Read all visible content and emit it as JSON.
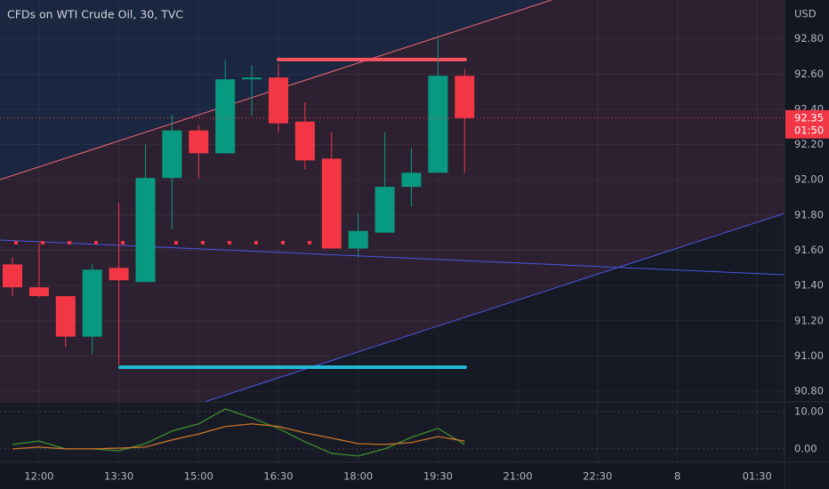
{
  "chart_data": [
    {
      "type": "candlestick",
      "title": "CFDs on WTI Crude Oil, 30, TVC",
      "currency": "USD",
      "categories": [
        null,
        "12:00",
        null,
        null,
        "13:30",
        null,
        null,
        "15:00",
        null,
        null,
        "16:30",
        null,
        null,
        "18:00",
        null,
        null,
        "19:30",
        null,
        null,
        "21:00",
        null,
        null,
        "22:30",
        null,
        null,
        "8",
        null,
        null,
        "01:30"
      ],
      "open": [
        91.52,
        91.39,
        91.34,
        91.11,
        91.5,
        91.42,
        92.01,
        92.28,
        92.15,
        92.57,
        92.58,
        92.33,
        92.12,
        91.61,
        91.7,
        91.96,
        92.04,
        92.59,
        null,
        null,
        null,
        null,
        null,
        null,
        null,
        null,
        null,
        null,
        null
      ],
      "high": [
        91.56,
        91.64,
        91.34,
        91.52,
        91.87,
        92.2,
        92.37,
        92.31,
        92.68,
        92.65,
        92.66,
        92.44,
        92.27,
        91.81,
        92.27,
        92.18,
        92.8,
        92.63,
        null,
        null,
        null,
        null,
        null,
        null,
        null,
        null,
        null,
        null,
        null
      ],
      "low": [
        91.34,
        91.33,
        91.05,
        91.01,
        90.95,
        91.42,
        91.72,
        92.01,
        92.15,
        92.36,
        92.27,
        92.06,
        91.61,
        91.56,
        91.7,
        91.85,
        92.04,
        92.04,
        null,
        null,
        null,
        null,
        null,
        null,
        null,
        null,
        null,
        null,
        null
      ],
      "close": [
        91.39,
        91.34,
        91.11,
        91.49,
        91.43,
        92.01,
        92.28,
        92.15,
        92.57,
        92.58,
        92.32,
        92.11,
        91.61,
        91.71,
        91.96,
        92.04,
        92.59,
        92.35,
        null,
        null,
        null,
        null,
        null,
        null,
        null,
        null,
        null,
        null,
        null
      ],
      "up_color": "#089981",
      "down_color": "#f23645",
      "last_price": 92.35,
      "countdown": "01:50",
      "ylim": [
        90.74,
        93.02
      ],
      "yticks": [
        {
          "value": 92.8,
          "label": "92.80"
        },
        {
          "value": 92.6,
          "label": "92.60"
        },
        {
          "value": 92.4,
          "label": "92.40"
        },
        {
          "value": 92.2,
          "label": "92.20"
        },
        {
          "value": 92.0,
          "label": "92.00"
        },
        {
          "value": 91.8,
          "label": "91.80"
        },
        {
          "value": 91.6,
          "label": "91.60"
        },
        {
          "value": 91.4,
          "label": "91.40"
        },
        {
          "value": 91.2,
          "label": "91.20"
        },
        {
          "value": 91.0,
          "label": "91.00"
        },
        {
          "value": 90.8,
          "label": "90.80"
        }
      ],
      "grid": true
    },
    {
      "type": "line",
      "series": [
        {
          "color": "#3f8f2a",
          "values": [
            1.2,
            2.1,
            0,
            0,
            -0.5,
            1.4,
            4.8,
            6.7,
            10.7,
            8.3,
            5.5,
            1.9,
            -1.2,
            -1.9,
            0,
            3.1,
            5.5,
            1.2,
            null,
            null,
            null,
            null,
            null,
            null,
            null,
            null,
            null,
            null,
            null
          ]
        },
        {
          "color": "#c7722b",
          "values": [
            0,
            0.5,
            0,
            0,
            0.2,
            0.5,
            2.4,
            4.0,
            6.0,
            6.7,
            6.0,
            4.3,
            2.9,
            1.4,
            1.2,
            1.7,
            3.3,
            2.1,
            null,
            null,
            null,
            null,
            null,
            null,
            null,
            null,
            null,
            null,
            null
          ]
        }
      ],
      "ylim": [
        -3.6,
        12.6
      ],
      "yticks": [
        {
          "value": 10,
          "label": "10.00"
        },
        {
          "value": 0,
          "label": "0.00"
        }
      ],
      "grid": true
    }
  ]
}
